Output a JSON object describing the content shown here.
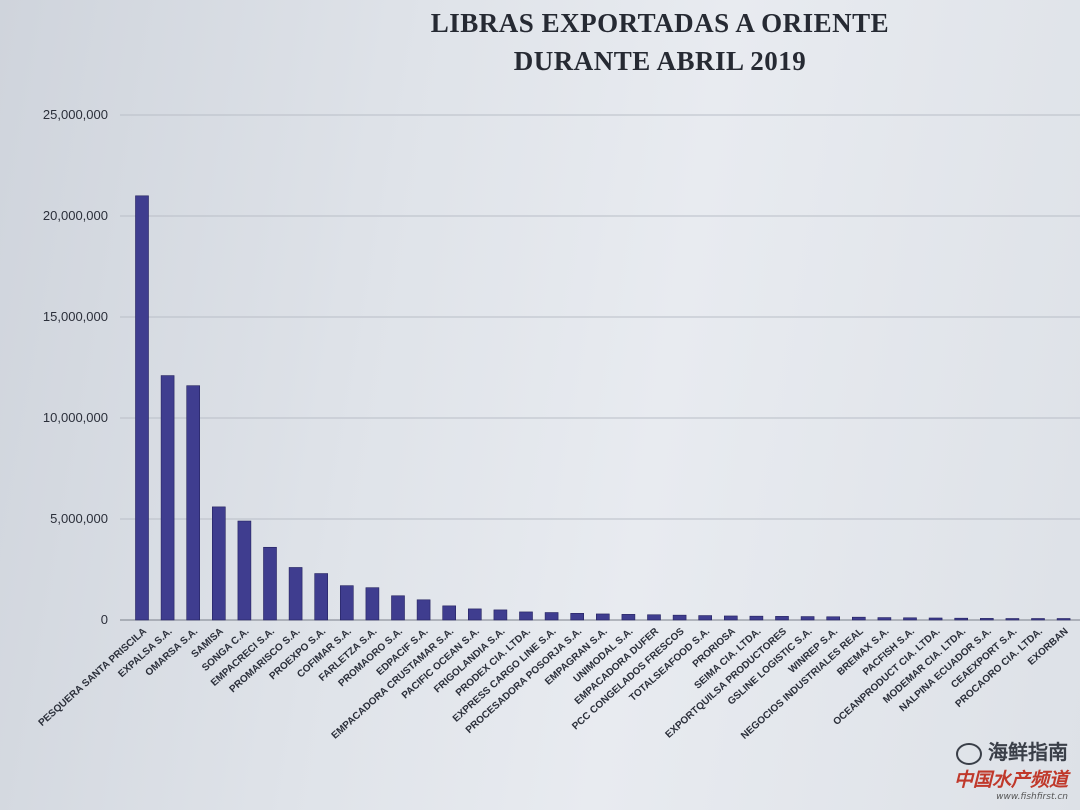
{
  "chart_data": {
    "type": "bar",
    "title_lines": [
      "LIBRAS EXPORTADAS A ORIENTE",
      "DURANTE ABRIL 2019"
    ],
    "ylim": [
      0,
      25000000
    ],
    "yticks": [
      "0",
      "5,000,000",
      "10,000,000",
      "15,000,000",
      "20,000,000",
      "25,000,000"
    ],
    "grid": true,
    "bar_color": "#3f3d8f",
    "categories": [
      "PESQUERA SANTA PRISCILA",
      "EXPALSA S.A.",
      "OMARSA S.A.",
      "SAMISA",
      "SONGA C.A.",
      "EMPACRECI S.A.",
      "PROMARISCO S.A.",
      "PROEXPO S.A.",
      "COFIMAR S.A.",
      "FARLETZA S.A.",
      "PROMAORO S.A.",
      "EDPACIF S.A.",
      "EMPACADORA CRUSTAMAR S.A.",
      "PACIFIC OCEAN S.A.",
      "FRIGOLANDIA S.A.",
      "PRODEX CIA. LTDA.",
      "EXPRESS CARGO LINE S.A.",
      "PROCESADORA POSORJA S.A.",
      "EMPAGRAN S.A.",
      "UNIMODAL S.A.",
      "EMPACADORA DUFER",
      "PCC CONGELADOS FRESCOS",
      "TOTALSEAFOOD S.A.",
      "PRORIOSA",
      "SEIMA CIA. LTDA.",
      "EXPORTQUILSA PRODUCTORES",
      "GSLINE LOGISTIC S.A.",
      "WINREP S.A.",
      "NEGOCIOS INDUSTRIALES REAL",
      "BREMAX S.A.",
      "PACFISH S.A.",
      "OCEANPRODUCT CIA. LTDA.",
      "MODEMAR CIA. LTDA.",
      "NALPINA ECUADOR S.A.",
      "CEAEXPORT S.A.",
      "PROCAORO CIA. LTDA.",
      "EXORBAN"
    ],
    "values": [
      21000000,
      12100000,
      11600000,
      5600000,
      4900000,
      3600000,
      2600000,
      2300000,
      1700000,
      1600000,
      1200000,
      1000000,
      700000,
      550000,
      500000,
      400000,
      370000,
      330000,
      300000,
      280000,
      260000,
      240000,
      220000,
      200000,
      190000,
      180000,
      170000,
      160000,
      140000,
      120000,
      110000,
      100000,
      90000,
      80000,
      70000,
      60000,
      50000
    ]
  },
  "watermark": {
    "line1": "海鲜指南",
    "line2": "中国水产频道",
    "line3": "www.fishfirst.cn"
  }
}
